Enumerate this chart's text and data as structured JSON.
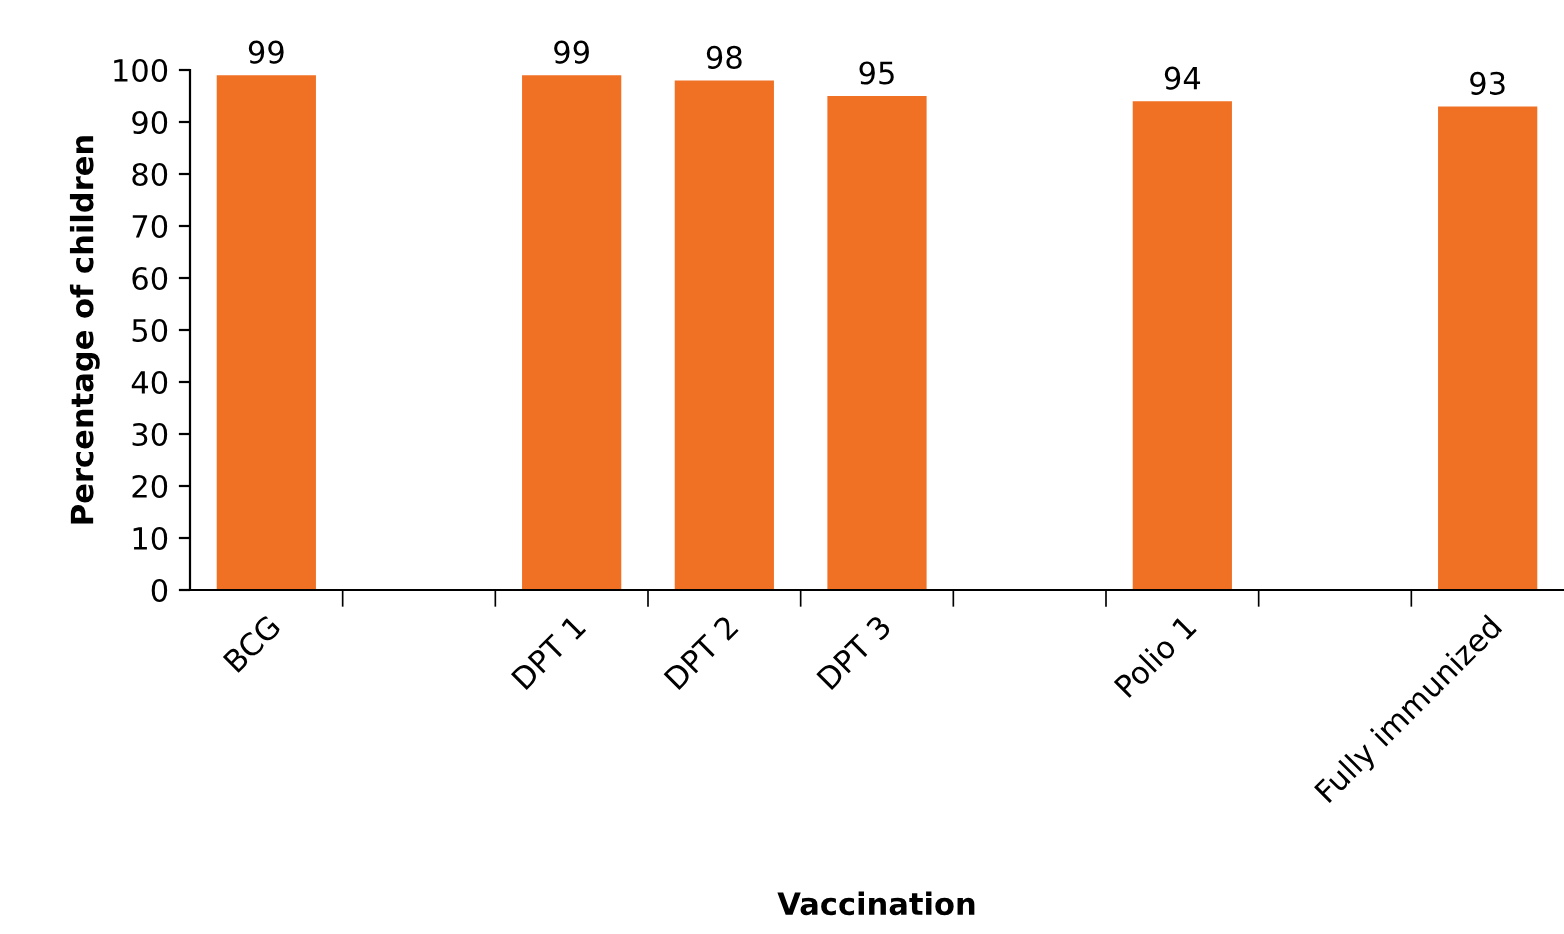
{
  "chart_data": {
    "type": "bar",
    "xlabel": "Vaccination",
    "ylabel": "Percentage of children",
    "categories": [
      "BCG",
      null,
      "DPT 1",
      "DPT 2",
      "DPT 3",
      null,
      "Polio 1",
      null,
      "Fully immunized"
    ],
    "values": [
      99,
      null,
      99,
      98,
      95,
      null,
      94,
      null,
      93
    ],
    "color": "#f07124",
    "ylim": [
      0,
      100
    ],
    "yticks": [
      0,
      10,
      20,
      30,
      40,
      50,
      60,
      70,
      80,
      90,
      100
    ],
    "data_labels": true,
    "grid": false,
    "legend": false
  }
}
